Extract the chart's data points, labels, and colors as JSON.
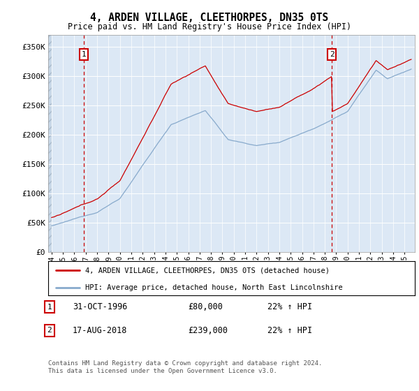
{
  "title": "4, ARDEN VILLAGE, CLEETHORPES, DN35 0TS",
  "subtitle": "Price paid vs. HM Land Registry's House Price Index (HPI)",
  "ylim": [
    0,
    370000
  ],
  "yticks": [
    0,
    50000,
    100000,
    150000,
    200000,
    250000,
    300000,
    350000
  ],
  "ytick_labels": [
    "£0",
    "£50K",
    "£100K",
    "£150K",
    "£200K",
    "£250K",
    "£300K",
    "£350K"
  ],
  "plot_bg": "#dce8f5",
  "grid_color": "#ffffff",
  "red_line_color": "#cc0000",
  "blue_line_color": "#88aacc",
  "marker1_year": 1996.83,
  "marker2_year": 2018.62,
  "legend_line1": "4, ARDEN VILLAGE, CLEETHORPES, DN35 0TS (detached house)",
  "legend_line2": "HPI: Average price, detached house, North East Lincolnshire",
  "ann1_date": "31-OCT-1996",
  "ann1_price": "£80,000",
  "ann1_hpi": "22% ↑ HPI",
  "ann2_date": "17-AUG-2018",
  "ann2_price": "£239,000",
  "ann2_hpi": "22% ↑ HPI",
  "footer": "Contains HM Land Registry data © Crown copyright and database right 2024.\nThis data is licensed under the Open Government Licence v3.0.",
  "xmin": 1993.7,
  "xmax": 2025.9
}
